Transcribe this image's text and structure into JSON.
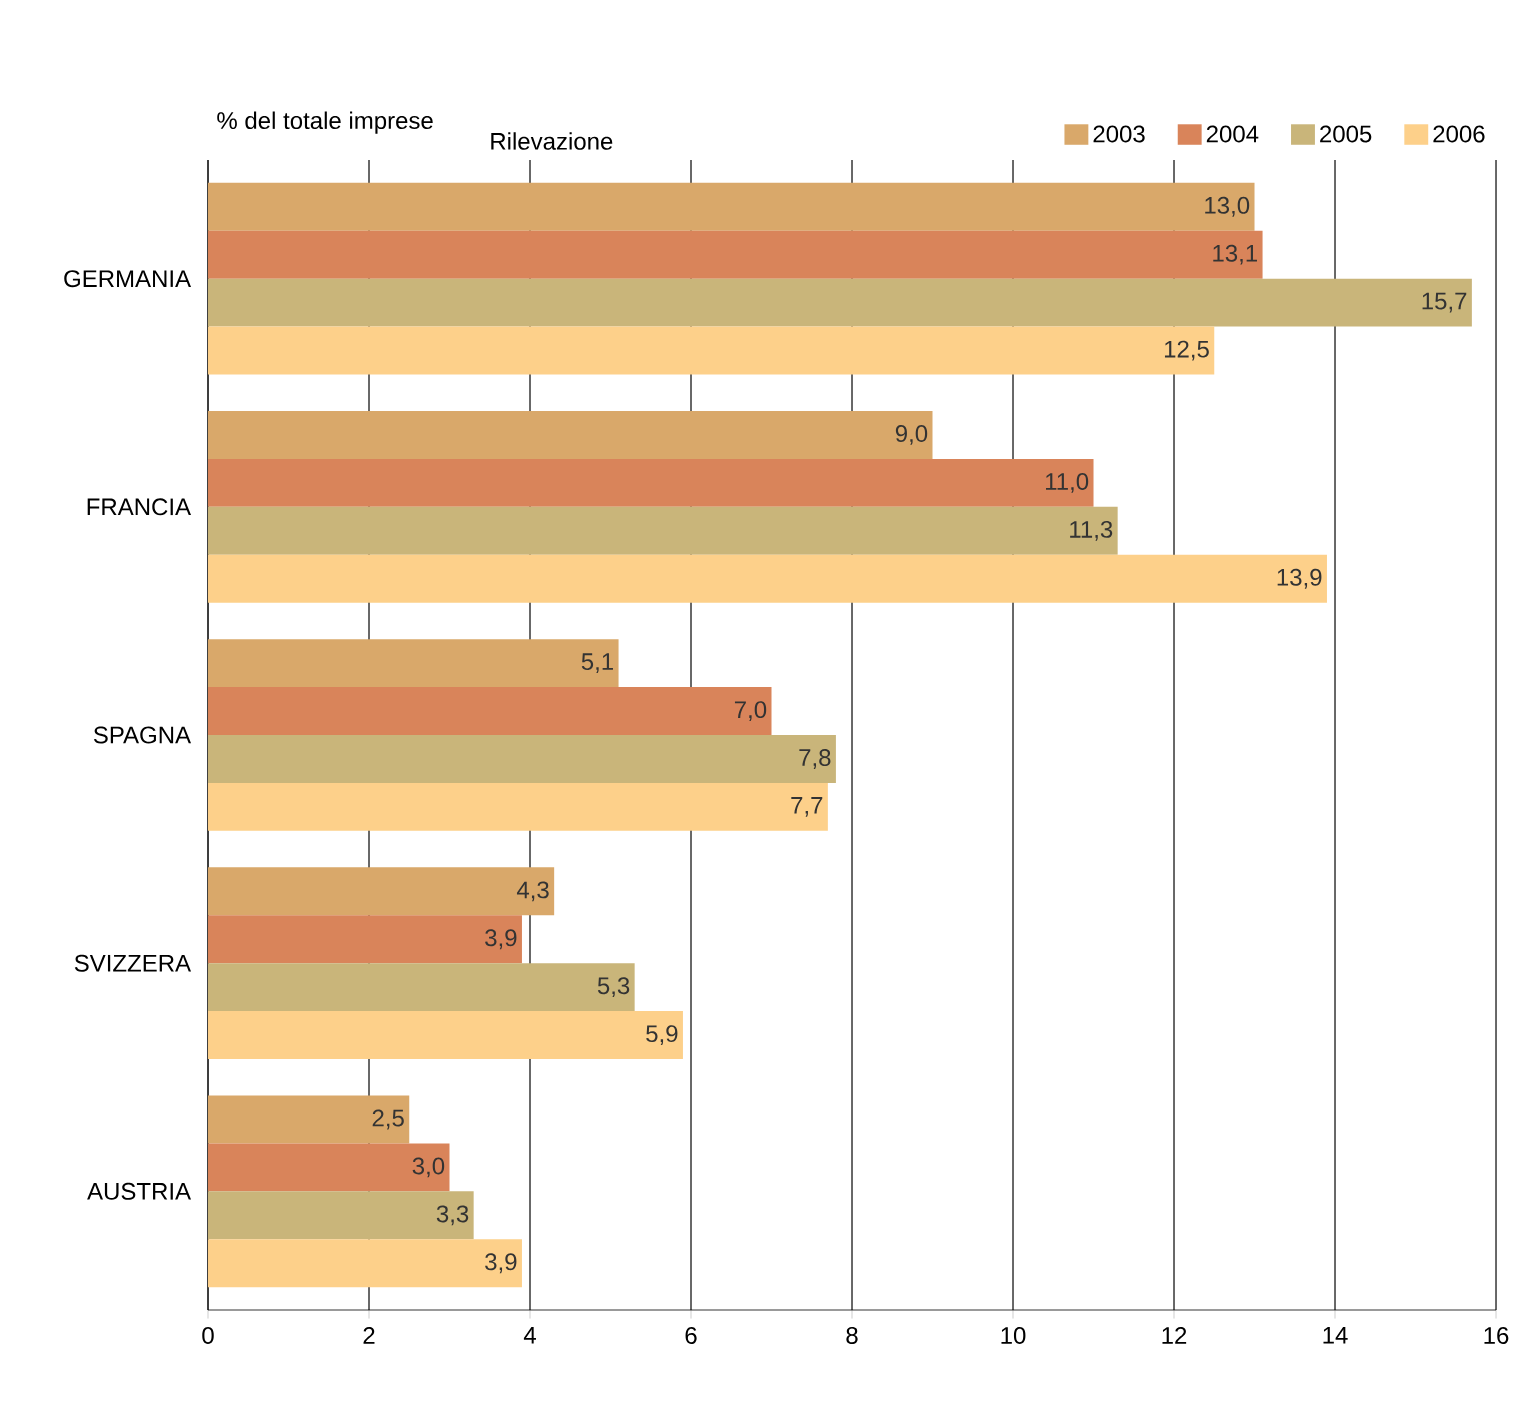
{
  "chart_data": {
    "type": "bar",
    "orientation": "horizontal",
    "title": "% del totale imprese",
    "legend_title": "Rilevazione",
    "categories": [
      "GERMANIA",
      "FRANCIA",
      "SPAGNA",
      "SVIZZERA",
      "AUSTRIA"
    ],
    "series": [
      {
        "name": "2003",
        "color": "#d9a86a",
        "values": [
          13.0,
          9.0,
          5.1,
          4.3,
          2.5
        ],
        "value_labels": [
          "13,0",
          "9,0",
          "5,1",
          "4,3",
          "2,5"
        ]
      },
      {
        "name": "2004",
        "color": "#d9845a",
        "values": [
          13.1,
          11.0,
          7.0,
          3.9,
          3.0
        ],
        "value_labels": [
          "13,1",
          "11,0",
          "7,0",
          "3,9",
          "3,0"
        ]
      },
      {
        "name": "2005",
        "color": "#c9b57a",
        "values": [
          15.7,
          11.3,
          7.8,
          5.3,
          3.3
        ],
        "value_labels": [
          "15,7",
          "11,3",
          "7,8",
          "5,3",
          "3,3"
        ]
      },
      {
        "name": "2006",
        "color": "#fdd08a",
        "values": [
          12.5,
          13.9,
          7.7,
          5.9,
          3.9
        ],
        "value_labels": [
          "12,5",
          "13,9",
          "7,7",
          "5,9",
          "3,9"
        ]
      }
    ],
    "xlim": [
      0,
      16
    ],
    "xticks": [
      0,
      2,
      4,
      6,
      8,
      10,
      12,
      14,
      16
    ],
    "grid": "x",
    "legend": "top"
  }
}
